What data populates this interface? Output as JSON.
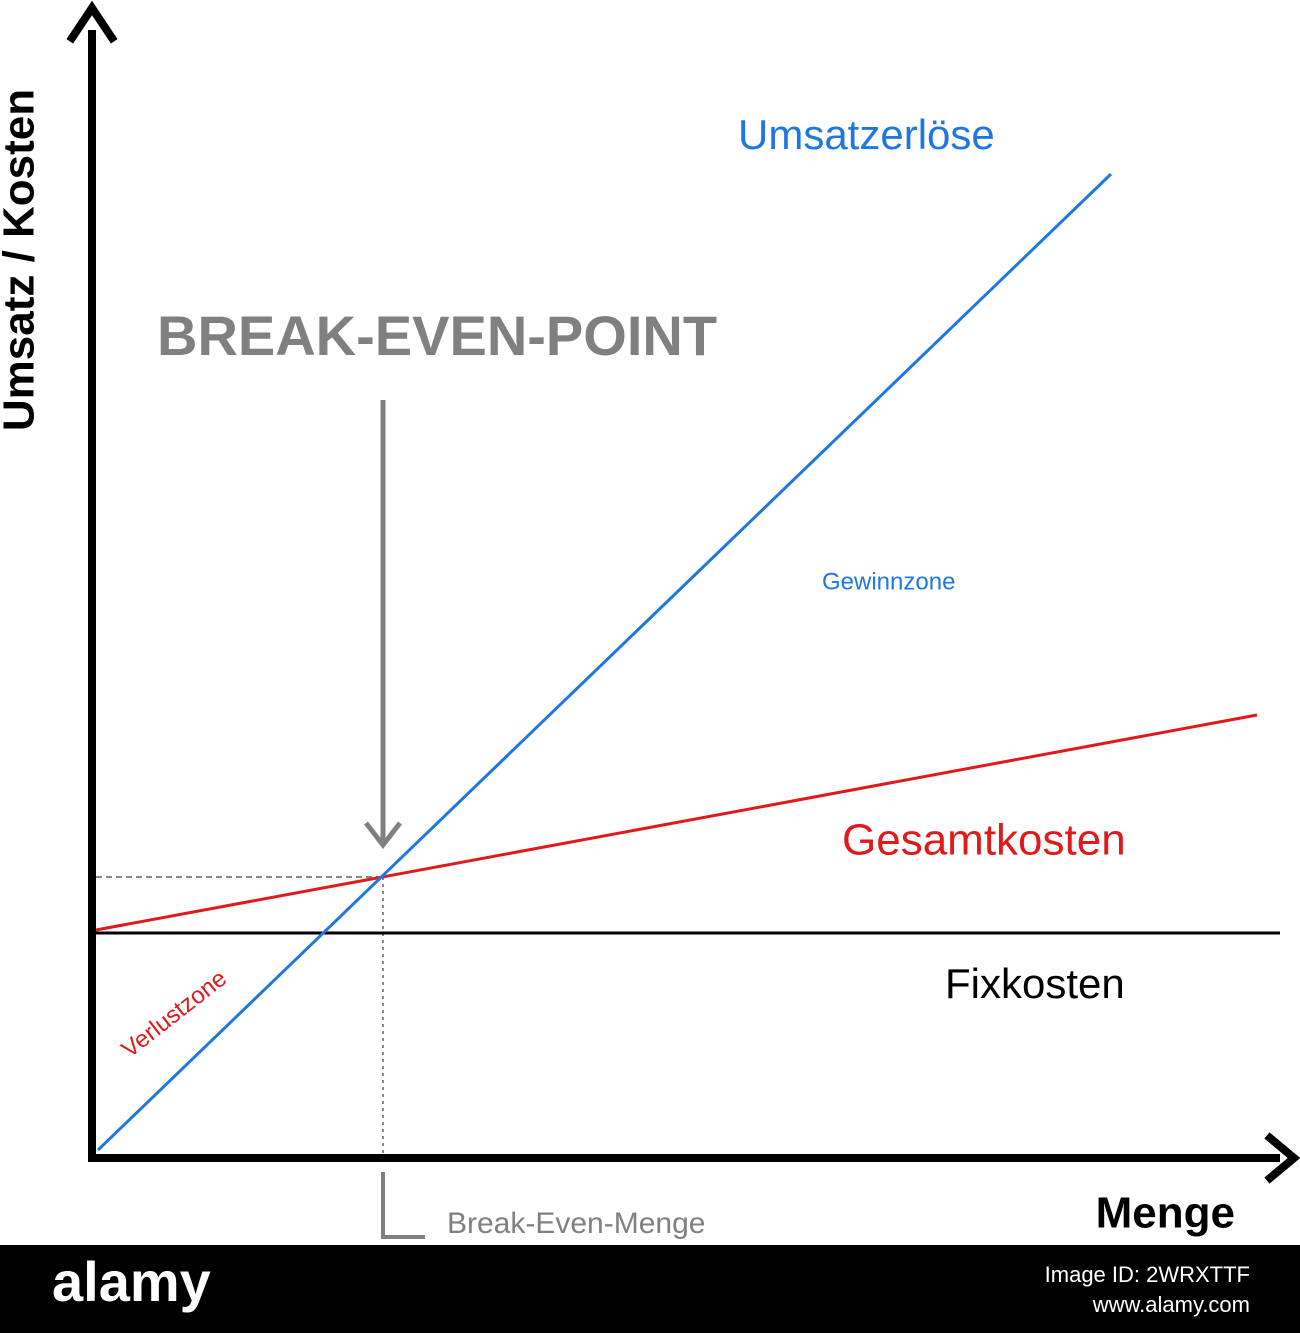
{
  "axes": {
    "y_label": "Umsatz / Kosten",
    "x_label": "Menge"
  },
  "lines": {
    "revenue": "Umsatzerlöse",
    "total_costs": "Gesamtkosten",
    "fixed_costs": "Fixkosten"
  },
  "zones": {
    "profit": "Gewinnzone",
    "loss": "Verlustzone"
  },
  "annotations": {
    "break_even_point": "BREAK-EVEN-POINT",
    "break_even_quantity": "Break-Even-Menge"
  },
  "footer": {
    "brand": "alamy",
    "image_id": "Image ID: 2WRXTTF",
    "url": "www.alamy.com"
  }
}
